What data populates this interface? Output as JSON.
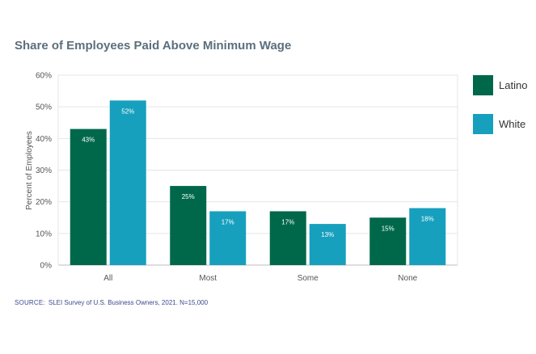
{
  "colors": {
    "latino": "#00684a",
    "white": "#16a0bd",
    "title": "#5c6f7c",
    "grid": "#e6e6e6",
    "axis_text": "#555555"
  },
  "footer": {
    "source_label": "SOURCE:",
    "source_text": "SLEI Survey of U.S. Business Owners, 2021. N=15,000"
  },
  "chart_data": {
    "type": "bar",
    "title": "Share of Employees Paid Above Minimum Wage",
    "xlabel": "",
    "ylabel": "Percent of Employees",
    "ylim": [
      0,
      60
    ],
    "yticks": [
      0,
      10,
      20,
      30,
      40,
      50,
      60
    ],
    "ytick_labels": [
      "0%",
      "10%",
      "20%",
      "30%",
      "40%",
      "50%",
      "60%"
    ],
    "categories": [
      "All",
      "Most",
      "Some",
      "None"
    ],
    "series": [
      {
        "name": "Latino",
        "values": [
          43,
          25,
          17,
          15
        ],
        "labels": [
          "43%",
          "25%",
          "17%",
          "15%"
        ]
      },
      {
        "name": "White",
        "values": [
          52,
          17,
          13,
          18
        ],
        "labels": [
          "52%",
          "17%",
          "13%",
          "18%"
        ]
      }
    ],
    "grid": true,
    "legend_position": "right"
  }
}
